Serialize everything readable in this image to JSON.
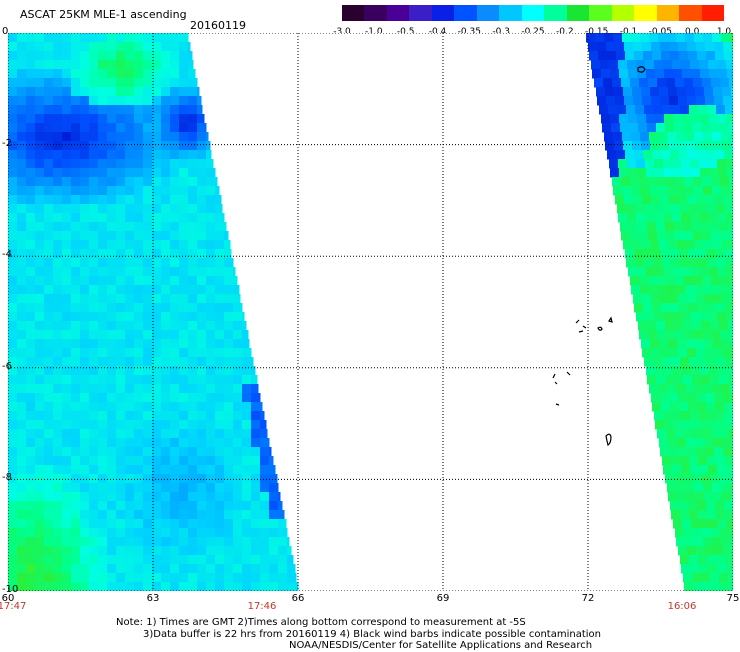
{
  "header": {
    "title": "ASCAT 25KM MLE-1 ascending",
    "date": "20160119"
  },
  "colorbar": {
    "colors": [
      "#2a0030",
      "#3a0060",
      "#4a0096",
      "#3a1ec8",
      "#0a20e6",
      "#0054ff",
      "#0a8cff",
      "#00c8ff",
      "#00ffff",
      "#00ff9a",
      "#19e632",
      "#5aff1e",
      "#b4ff00",
      "#ffff00",
      "#ffb400",
      "#ff5000",
      "#ff1e00"
    ],
    "ticks": [
      "-3.0",
      "-1.0",
      "-0.5",
      "-0.4",
      "-0.35",
      "-0.3",
      "-0.25",
      "-0.2",
      "-0.15",
      "-0.1",
      "-0.05",
      "0.0",
      "1.0"
    ]
  },
  "map": {
    "lat_labels": [
      "0",
      "-2",
      "-4",
      "-6",
      "-8",
      "-10"
    ],
    "lon_labels": [
      "60",
      "63",
      "66",
      "69",
      "72",
      "75"
    ],
    "time_labels": [
      "17:47",
      "17:46",
      "16:06"
    ]
  },
  "footer": {
    "line1": "Note: 1) Times are GMT 2)Times along bottom correspond to measurement at -5S",
    "line2": "3)Data buffer is 22 hrs from 20160119 4) Black wind barbs indicate possible contamination",
    "line3": "NOAA/NESDIS/Center for Satellite Applications and Research"
  }
}
